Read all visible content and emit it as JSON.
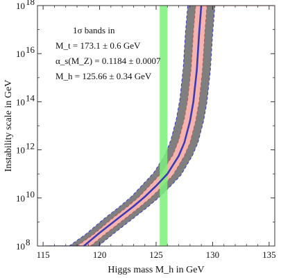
{
  "chart_data": {
    "type": "line",
    "title": "",
    "xlabel": "Higgs mass M_h in GeV",
    "ylabel": "Instability scale in GeV",
    "xlim": [
      114.5,
      135.5
    ],
    "ylim_log10": [
      8,
      18
    ],
    "y_scale": "log",
    "grid": false,
    "x_ticks": [
      115,
      120,
      125,
      130,
      135
    ],
    "y_ticks": [
      {
        "exp": 8,
        "label": "10",
        "sup": "8"
      },
      {
        "exp": 10,
        "label": "10",
        "sup": "10"
      },
      {
        "exp": 12,
        "label": "10",
        "sup": "12"
      },
      {
        "exp": 14,
        "label": "10",
        "sup": "14"
      },
      {
        "exp": 16,
        "label": "10",
        "sup": "16"
      },
      {
        "exp": 18,
        "label": "10",
        "sup": "18"
      }
    ],
    "annotation": {
      "line1": "1σ bands in",
      "line2": "M_t = 173.1 ± 0.6 GeV",
      "line3": "α_s(M_Z) = 0.1184 ± 0.0007",
      "line4": "M_h = 125.66 ± 0.34 GeV"
    },
    "higgs_band": {
      "center": 125.66,
      "halfwidth": 0.34,
      "color": "#7cf07a"
    },
    "central_curve": {
      "color": "#3a3ab4",
      "points": [
        [
          118.6,
          8.0
        ],
        [
          120,
          8.55
        ],
        [
          121.5,
          9.1
        ],
        [
          123,
          9.65
        ],
        [
          124,
          10.05
        ],
        [
          125,
          10.5
        ],
        [
          126,
          11.0
        ],
        [
          127,
          11.75
        ],
        [
          127.5,
          12.3
        ],
        [
          128,
          13.2
        ],
        [
          128.3,
          14.0
        ],
        [
          128.6,
          15.3
        ],
        [
          128.8,
          16.8
        ],
        [
          129.0,
          18.0
        ]
      ]
    },
    "bands": [
      {
        "name": "alpha_s",
        "color": "#f5b3ae",
        "lower": [
          [
            118.0,
            8.0
          ],
          [
            119.5,
            8.5
          ],
          [
            121,
            9.1
          ],
          [
            122.5,
            9.65
          ],
          [
            123.5,
            10.05
          ],
          [
            124.5,
            10.55
          ],
          [
            125.5,
            11.05
          ],
          [
            126.5,
            11.8
          ],
          [
            127.0,
            12.4
          ],
          [
            127.5,
            13.3
          ],
          [
            127.8,
            14.1
          ],
          [
            128.1,
            15.4
          ],
          [
            128.3,
            16.9
          ],
          [
            128.5,
            18.0
          ]
        ],
        "upper": [
          [
            119.2,
            8.0
          ],
          [
            120.5,
            8.5
          ],
          [
            122,
            9.05
          ],
          [
            123.5,
            9.6
          ],
          [
            124.5,
            10.0
          ],
          [
            125.5,
            10.45
          ],
          [
            126.5,
            10.95
          ],
          [
            127.5,
            11.75
          ],
          [
            128.0,
            12.3
          ],
          [
            128.5,
            13.2
          ],
          [
            128.8,
            14.0
          ],
          [
            129.1,
            15.3
          ],
          [
            129.3,
            16.8
          ],
          [
            129.5,
            18.0
          ]
        ]
      },
      {
        "name": "M_t",
        "color": "#7f7f7f",
        "lower": [
          [
            117.3,
            8.0
          ],
          [
            118.8,
            8.5
          ],
          [
            120.3,
            9.1
          ],
          [
            121.8,
            9.65
          ],
          [
            122.8,
            10.05
          ],
          [
            123.8,
            10.55
          ],
          [
            124.8,
            11.05
          ],
          [
            125.8,
            11.8
          ],
          [
            126.3,
            12.4
          ],
          [
            126.8,
            13.3
          ],
          [
            127.1,
            14.1
          ],
          [
            127.4,
            15.4
          ],
          [
            127.6,
            16.9
          ],
          [
            127.8,
            18.0
          ]
        ],
        "upper": [
          [
            119.9,
            8.0
          ],
          [
            121.2,
            8.5
          ],
          [
            122.7,
            9.05
          ],
          [
            124.2,
            9.6
          ],
          [
            125.2,
            10.0
          ],
          [
            126.2,
            10.45
          ],
          [
            127.2,
            10.95
          ],
          [
            128.2,
            11.75
          ],
          [
            128.7,
            12.3
          ],
          [
            129.2,
            13.2
          ],
          [
            129.5,
            14.0
          ],
          [
            129.8,
            15.3
          ],
          [
            130.0,
            16.8
          ],
          [
            130.2,
            18.0
          ]
        ]
      }
    ]
  }
}
